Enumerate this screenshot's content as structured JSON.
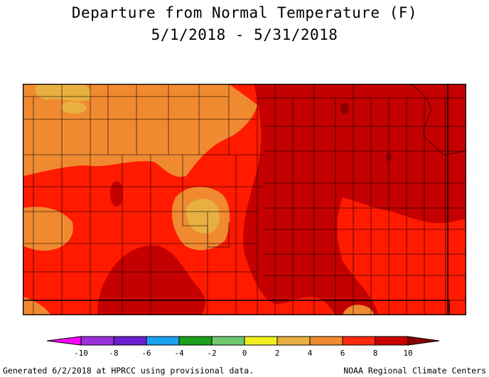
{
  "title": {
    "line1": "Departure from Normal Temperature (F)",
    "line2": "5/1/2018 - 5/31/2018"
  },
  "legend": {
    "ticks": [
      "-10",
      "-8",
      "-6",
      "-4",
      "-2",
      "0",
      "2",
      "4",
      "6",
      "8",
      "10"
    ],
    "colors": [
      "#ff00ff",
      "#9a30d8",
      "#6a1fd0",
      "#1aa0f0",
      "#1aa01a",
      "#70c870",
      "#f0f020",
      "#e8b040",
      "#f08a30",
      "#ff2a10",
      "#c80000",
      "#8a0000"
    ]
  },
  "map": {
    "region": "Kansas",
    "fill_colors": {
      "band_4_6": "#e8b040",
      "band_6_8": "#f08a30",
      "band_8_10": "#ff1a00",
      "band_10_plus": "#c40000"
    }
  },
  "footer": {
    "left": "Generated 6/2/2018 at HPRCC using provisional data.",
    "right": "NOAA Regional Climate Centers"
  }
}
